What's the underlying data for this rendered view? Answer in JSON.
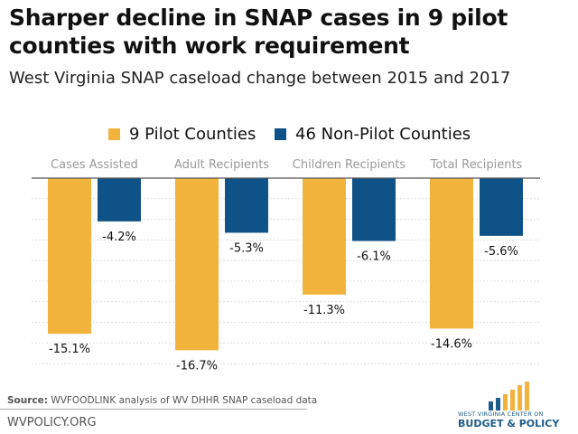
{
  "title_line1": "Sharper decline in SNAP cases in 9 pilot",
  "title_line2": "counties with work requirement",
  "subtitle": "West Virginia SNAP caseload change between 2015 and 2017",
  "chart_data": {
    "type": "bar",
    "categories": [
      "Cases Assisted",
      "Adult Recipients",
      "Children Recipients",
      "Total Recipients"
    ],
    "series": [
      {
        "name": "9 Pilot Counties",
        "values": [
          -15.1,
          -16.7,
          -11.3,
          -14.6
        ],
        "color": "#f2b33d"
      },
      {
        "name": "46 Non-Pilot Counties",
        "values": [
          -4.2,
          -5.3,
          -6.1,
          -5.6
        ],
        "color": "#0f5287"
      }
    ],
    "data_labels": [
      [
        "-15.1%",
        "-16.7%",
        "-11.3%",
        "-14.6%"
      ],
      [
        "-4.2%",
        "-5.3%",
        "-6.1%",
        "-5.6%"
      ]
    ],
    "ylim": [
      -18,
      0
    ],
    "grid": true,
    "legend": "top"
  },
  "footer": {
    "source_label": "Source:",
    "source_text": "WVFOODLINK analysis of WV DHHR SNAP caseload data",
    "site": "WVPOLICY.ORG",
    "logo_line1": "WEST VIRGINIA CENTER ON",
    "logo_line2": "BUDGET & POLICY"
  }
}
